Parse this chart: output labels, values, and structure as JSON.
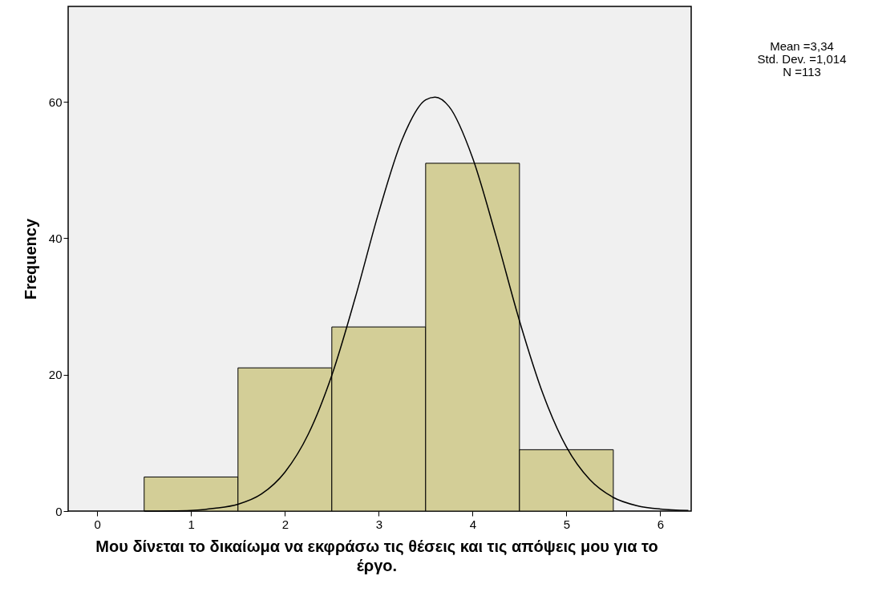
{
  "chart_data": {
    "type": "histogram",
    "xlabel": "Μου δίνεται το δικαίωμα να εκφράσω τις θέσεις και τις απόψεις μου για το έργο.",
    "ylabel": "Frequency",
    "bins": [
      0.5,
      1.5,
      2.5,
      3.5,
      4.5,
      5.5
    ],
    "values": [
      5,
      21,
      27,
      51,
      9
    ],
    "color": "#d3ce97",
    "series": [
      {
        "type": "line",
        "color": "#000000",
        "x": [
          0.5,
          1,
          1.25,
          1.5,
          1.75,
          2,
          2.25,
          2.5,
          2.75,
          3,
          3.25,
          3.5,
          3.6,
          3.75,
          4,
          4.25,
          4.5,
          4.75,
          5,
          5.25,
          5.5,
          5.75,
          6,
          6.3
        ],
        "values": [
          0,
          0.1,
          0.4,
          1,
          2.5,
          5.7,
          11.3,
          19.9,
          31.3,
          43.8,
          54.5,
          60.3,
          60.7,
          59.3,
          51.8,
          40.3,
          27.9,
          17.2,
          9.4,
          4.6,
          2,
          0.8,
          0.3,
          0.1
        ]
      }
    ],
    "xlim": [
      -0.31,
      6.33
    ],
    "xticks": [
      0,
      1,
      2,
      3,
      4,
      5,
      6
    ],
    "ylim": [
      0,
      74
    ],
    "yticks": [
      0,
      20,
      40,
      60
    ],
    "grid": false,
    "annotations": [
      "Mean =3,34",
      "Std. Dev. =1,014",
      "N =113"
    ]
  }
}
